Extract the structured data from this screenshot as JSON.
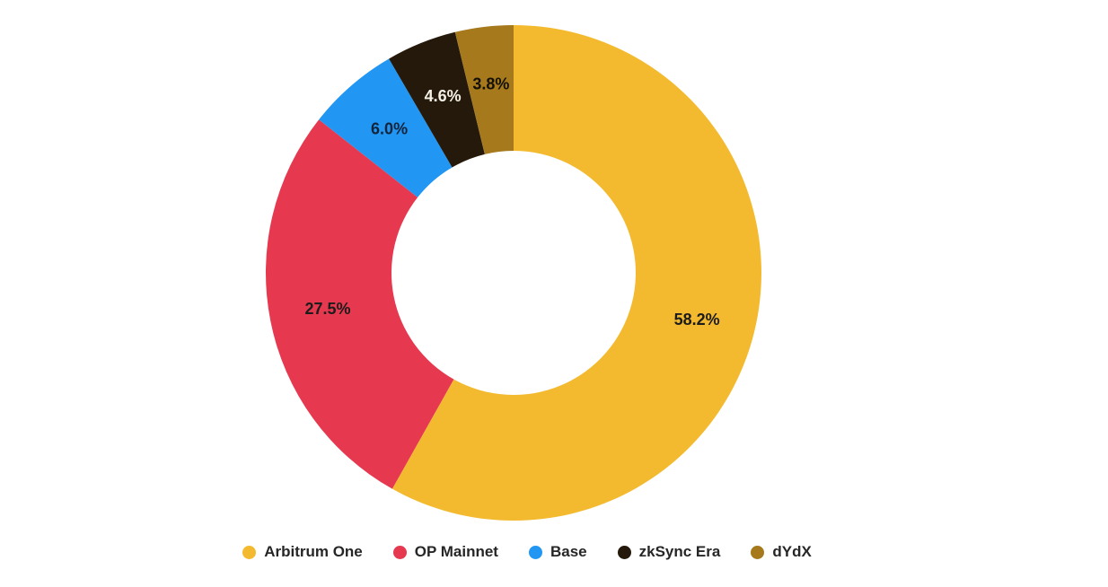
{
  "chart_data": {
    "type": "pie",
    "subtype": "donut",
    "title": "",
    "direction": "clockwise",
    "start_angle_deg": 0,
    "inner_radius_ratio": 0.49,
    "legend_position": "bottom",
    "categories": [
      "Arbitrum One",
      "OP Mainnet",
      "Base",
      "zkSync Era",
      "dYdX"
    ],
    "values": [
      58.2,
      27.5,
      6.0,
      4.6,
      3.8
    ],
    "slices": [
      {
        "label": "Arbitrum One",
        "value": 58.2,
        "display": "58.2%",
        "color": "#F3BA2F",
        "label_color": "#1c1c1c"
      },
      {
        "label": "OP Mainnet",
        "value": 27.5,
        "display": "27.5%",
        "color": "#E63950",
        "label_color": "#1c1c1c"
      },
      {
        "label": "Base",
        "value": 6.0,
        "display": "6.0%",
        "color": "#2196F3",
        "label_color": "#13233a"
      },
      {
        "label": "zkSync Era",
        "value": 4.6,
        "display": "4.6%",
        "color": "#24190A",
        "label_color": "#f5f0e6"
      },
      {
        "label": "dYdX",
        "value": 3.8,
        "display": "3.8%",
        "color": "#A5791C",
        "label_color": "#141005"
      }
    ]
  }
}
